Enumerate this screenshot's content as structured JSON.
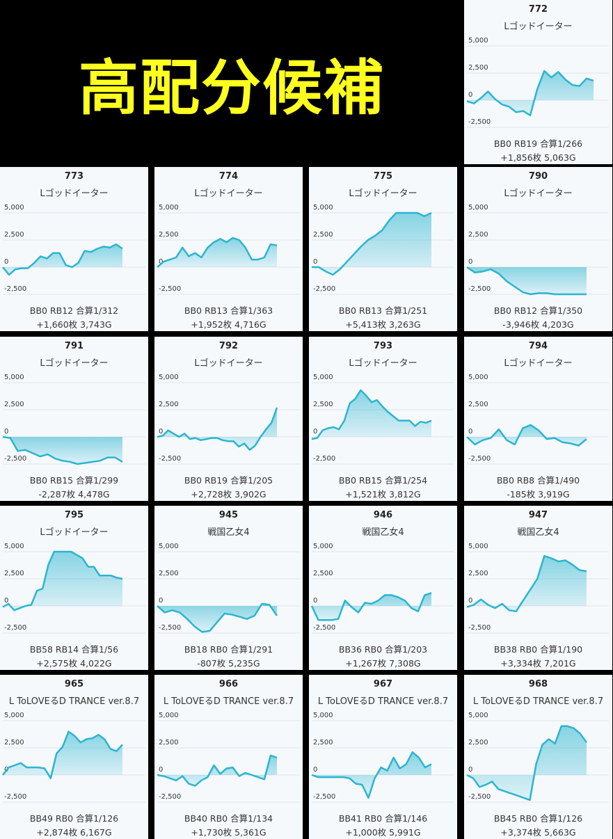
{
  "banner": {
    "title": "高配分候補"
  },
  "colors": {
    "line": "#2bb5cf",
    "fill": "#2bb5cf",
    "grid": "#dfe5eb",
    "card_bg": "#f6f9fc"
  },
  "chart_data": [
    {
      "type": "area",
      "machine_no": "772",
      "machine_name": "Lゴッドイーター",
      "ylim": [
        -2500,
        5000
      ],
      "yticks": [
        "5,000",
        "2,500",
        "0",
        "-2,500"
      ],
      "values": [
        -100,
        -300,
        200,
        800,
        100,
        -400,
        -600,
        -1100,
        -1000,
        -1400,
        1000,
        2700,
        2100,
        2600,
        1900,
        1400,
        1300,
        2000,
        1800
      ],
      "stat1": "BB0 RB19 合算1/266",
      "stat2": "+1,856枚 5,063G"
    },
    {
      "type": "area",
      "machine_no": "773",
      "machine_name": "Lゴッドイーター",
      "ylim": [
        -2500,
        5000
      ],
      "yticks": [
        "5,000",
        "2,500",
        "0",
        "-2,500"
      ],
      "values": [
        0,
        -700,
        -200,
        -100,
        -100,
        400,
        1000,
        800,
        1300,
        1300,
        200,
        0,
        400,
        1500,
        1400,
        1700,
        1900,
        1800,
        2100,
        1700
      ],
      "stat1": "BB0 RB12 合算1/312",
      "stat2": "+1,660枚 3,743G"
    },
    {
      "type": "area",
      "machine_no": "774",
      "machine_name": "Lゴッドイーター",
      "ylim": [
        -2500,
        5000
      ],
      "yticks": [
        "5,000",
        "2,500",
        "0",
        "-2,500"
      ],
      "values": [
        0,
        500,
        700,
        900,
        1800,
        1000,
        1300,
        900,
        1800,
        2300,
        2600,
        2300,
        2700,
        2500,
        1800,
        700,
        700,
        900,
        2100,
        2000
      ],
      "stat1": "BB0 RB13 合算1/363",
      "stat2": "+1,952枚 4,716G"
    },
    {
      "type": "area",
      "machine_no": "775",
      "machine_name": "Lゴッドイーター",
      "ylim": [
        -2500,
        5000
      ],
      "yticks": [
        "5,000",
        "2,500",
        "0",
        "-2,500"
      ],
      "values": [
        0,
        0,
        -400,
        -700,
        -200,
        500,
        1200,
        1900,
        2500,
        2900,
        3400,
        4300,
        5000,
        5000,
        5000,
        5000,
        4700,
        5000
      ],
      "stat1": "BB0 RB13 合算1/251",
      "stat2": "+5,413枚 3,263G"
    },
    {
      "type": "area",
      "machine_no": "790",
      "machine_name": "Lゴッドイーター",
      "ylim": [
        -2500,
        5000
      ],
      "yticks": [
        "5,000",
        "2,500",
        "0",
        "-2,500"
      ],
      "values": [
        0,
        -500,
        -400,
        -200,
        -600,
        -1300,
        -1800,
        -2300,
        -2500,
        -2400,
        -2400,
        -2500,
        -2500,
        -2500,
        -2500,
        -2500
      ],
      "stat1": "BB0 RB12 合算1/350",
      "stat2": "-3,946枚 4,203G"
    },
    {
      "type": "area",
      "machine_no": "791",
      "machine_name": "Lゴッドイーター",
      "ylim": [
        -2500,
        5000
      ],
      "yticks": [
        "5,000",
        "2,500",
        "0",
        "-2,500"
      ],
      "values": [
        0,
        -100,
        -1300,
        -1200,
        -1500,
        -1800,
        -1600,
        -2000,
        -2200,
        -2300,
        -2500,
        -2400,
        -2300,
        -2200,
        -1900,
        -1900,
        -2300
      ],
      "stat1": "BB0 RB15 合算1/299",
      "stat2": "-2,287枚 4,478G"
    },
    {
      "type": "area",
      "machine_no": "792",
      "machine_name": "Lゴッドイーター",
      "ylim": [
        -2500,
        5000
      ],
      "yticks": [
        "5,000",
        "2,500",
        "0",
        "-2,500"
      ],
      "values": [
        0,
        100,
        600,
        300,
        0,
        300,
        -200,
        -100,
        -300,
        -200,
        -100,
        -100,
        -300,
        -400,
        -400,
        -900,
        -600,
        -1200,
        -800,
        0,
        700,
        1300,
        2700
      ],
      "stat1": "BB0 RB19 合算1/205",
      "stat2": "+2,728枚 3,902G"
    },
    {
      "type": "area",
      "machine_no": "793",
      "machine_name": "Lゴッドイーター",
      "ylim": [
        -2500,
        5000
      ],
      "yticks": [
        "5,000",
        "2,500",
        "0",
        "-2,500"
      ],
      "values": [
        -200,
        -100,
        600,
        800,
        900,
        700,
        1500,
        3100,
        3500,
        4300,
        3800,
        3200,
        3400,
        2800,
        2300,
        1900,
        1500,
        1500,
        1500,
        1000,
        1400,
        1300,
        1500
      ],
      "stat1": "BB0 RB15 合算1/254",
      "stat2": "+1,521枚 3,812G"
    },
    {
      "type": "area",
      "machine_no": "794",
      "machine_name": "Lゴッドイーター",
      "ylim": [
        -2500,
        5000
      ],
      "yticks": [
        "5,000",
        "2,500",
        "0",
        "-2,500"
      ],
      "values": [
        0,
        -700,
        -300,
        -100,
        700,
        -300,
        -700,
        800,
        1100,
        600,
        -200,
        -100,
        -500,
        -600,
        -800,
        -200
      ],
      "stat1": "BB0 RB8 合算1/490",
      "stat2": "-185枚 3,919G"
    },
    {
      "type": "area",
      "machine_no": "795",
      "machine_name": "Lゴッドイーター",
      "ylim": [
        -2500,
        5000
      ],
      "yticks": [
        "5,000",
        "2,500",
        "0",
        "-2,500"
      ],
      "values": [
        -100,
        200,
        -400,
        -200,
        0,
        100,
        1400,
        1600,
        3800,
        5000,
        5000,
        5000,
        5000,
        4700,
        4400,
        3600,
        3600,
        2800,
        2800,
        2800,
        2600,
        2500
      ],
      "stat1": "BB58 RB14 合算1/56",
      "stat2": "+2,575枚 4,022G"
    },
    {
      "type": "area",
      "machine_no": "945",
      "machine_name": "戦国乙女4",
      "ylim": [
        -2500,
        5000
      ],
      "yticks": [
        "5,000",
        "2,500",
        "0",
        "-2,500"
      ],
      "values": [
        0,
        -600,
        -400,
        -600,
        -1200,
        -1900,
        -2400,
        -2300,
        -1500,
        -700,
        -800,
        -1000,
        -1200,
        -900,
        200,
        100,
        -900
      ],
      "stat1": "BB18 RB0 合算1/291",
      "stat2": "-807枚 5,235G"
    },
    {
      "type": "area",
      "machine_no": "946",
      "machine_name": "戦国乙女4",
      "ylim": [
        -2500,
        5000
      ],
      "yticks": [
        "5,000",
        "2,500",
        "0",
        "-2,500"
      ],
      "values": [
        0,
        -1300,
        -1300,
        -1300,
        -1200,
        500,
        -100,
        -600,
        300,
        200,
        500,
        1000,
        1000,
        800,
        500,
        -200,
        -500,
        1000,
        1200
      ],
      "stat1": "BB36 RB0 合算1/203",
      "stat2": "+1,267枚 7,308G"
    },
    {
      "type": "area",
      "machine_no": "947",
      "machine_name": "戦国乙女4",
      "ylim": [
        -2500,
        5000
      ],
      "yticks": [
        "5,000",
        "2,500",
        "0",
        "-2,500"
      ],
      "values": [
        -100,
        100,
        600,
        100,
        -200,
        200,
        -400,
        -500,
        500,
        1500,
        2500,
        4600,
        4400,
        4100,
        4200,
        3800,
        3300,
        3200
      ],
      "stat1": "BB38 RB0 合算1/190",
      "stat2": "+3,334枚 7,201G"
    },
    {
      "type": "area",
      "machine_no": "965",
      "machine_name": "L ToLOVEるD TRANCE ver.8.7",
      "ylim": [
        -2500,
        5000
      ],
      "yticks": [
        "5,000",
        "2,500",
        "0",
        "-2,500"
      ],
      "values": [
        0,
        700,
        900,
        1100,
        700,
        700,
        700,
        600,
        -300,
        2000,
        2600,
        4000,
        3600,
        3000,
        3300,
        3400,
        3700,
        3300,
        2400,
        2200,
        2800
      ],
      "stat1": "BB49 RB0 合算1/126",
      "stat2": "+2,874枚 6,167G"
    },
    {
      "type": "area",
      "machine_no": "966",
      "machine_name": "L ToLOVEるD TRANCE ver.8.7",
      "ylim": [
        -2500,
        5000
      ],
      "yticks": [
        "5,000",
        "2,500",
        "0",
        "-2,500"
      ],
      "values": [
        0,
        -100,
        -300,
        -500,
        -100,
        -800,
        -1000,
        -500,
        -200,
        900,
        100,
        600,
        700,
        -100,
        200,
        0,
        -200,
        -400,
        1800,
        1600
      ],
      "stat1": "BB40 RB0 合算1/134",
      "stat2": "+1,730枚 5,361G"
    },
    {
      "type": "area",
      "machine_no": "967",
      "machine_name": "L ToLOVEるD TRANCE ver.8.7",
      "ylim": [
        -2500,
        5000
      ],
      "yticks": [
        "5,000",
        "2,500",
        "0",
        "-2,500"
      ],
      "values": [
        0,
        -200,
        -200,
        -200,
        -200,
        -200,
        -300,
        -800,
        -900,
        -2100,
        -300,
        700,
        400,
        1600,
        600,
        1000,
        2100,
        1600,
        700,
        1000
      ],
      "stat1": "BB41 RB0 合算1/146",
      "stat2": "+1,000枚 5,991G"
    },
    {
      "type": "area",
      "machine_no": "968",
      "machine_name": "L ToLOVEるD TRANCE ver.8.7",
      "ylim": [
        -2500,
        5000
      ],
      "yticks": [
        "5,000",
        "2,500",
        "0",
        "-2,500"
      ],
      "values": [
        0,
        -300,
        -1100,
        -900,
        -600,
        -1300,
        -1500,
        -1700,
        -1900,
        -2100,
        -2300,
        1000,
        2800,
        3300,
        2900,
        4500,
        4500,
        4300,
        3800,
        3000
      ],
      "stat1": "BB45 RB0 合算1/126",
      "stat2": "+3,374枚 5,663G"
    }
  ]
}
